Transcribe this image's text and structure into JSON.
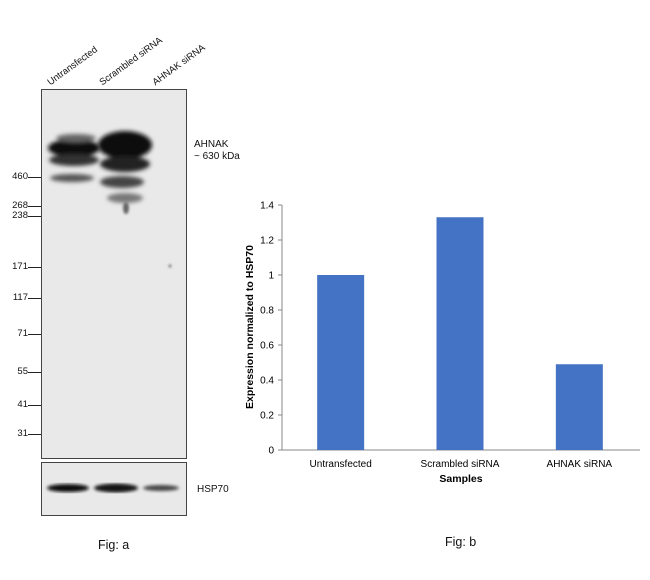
{
  "fig_a": {
    "lanes": [
      "Untransfected",
      "Scrambled siRNA",
      "AHNAK siRNA"
    ],
    "markers": [
      "460",
      "268",
      "238",
      "171",
      "117",
      "71",
      "55",
      "41",
      "31"
    ],
    "target_label": "AHNAK",
    "target_size": "~ 630 kDa",
    "loading_label": "HSP70",
    "caption": "Fig: a"
  },
  "fig_b": {
    "caption": "Fig: b"
  },
  "chart_data": {
    "type": "bar",
    "categories": [
      "Untransfected",
      "Scrambled siRNA",
      "AHNAK siRNA"
    ],
    "values": [
      1.0,
      1.33,
      0.49
    ],
    "title": "",
    "xlabel": "Samples",
    "ylabel": "Expression normalized to HSP70",
    "ylim": [
      0,
      1.4
    ],
    "yticks": [
      "0",
      "0.2",
      "0.4",
      "0.6",
      "0.8",
      "1",
      "1.2",
      "1.4"
    ],
    "grid": false,
    "bar_color": "#4472C4"
  }
}
